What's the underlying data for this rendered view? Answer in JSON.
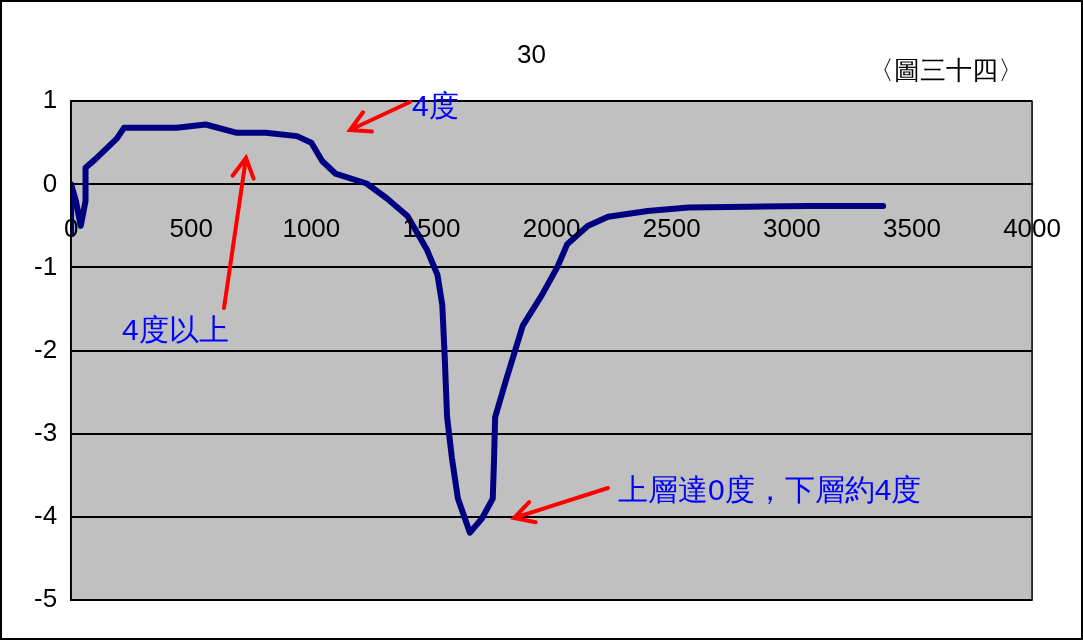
{
  "chart_data": {
    "type": "line",
    "title": "30",
    "annotations": [
      "〈圖三十四〉",
      "4度",
      "4度以上",
      "上層達0度，下層約4度"
    ],
    "x": [
      0,
      0,
      20,
      40,
      60,
      60,
      100,
      190,
      220,
      310,
      440,
      560,
      690,
      810,
      940,
      1000,
      1045,
      1100,
      1230,
      1315,
      1400,
      1480,
      1525,
      1545,
      1555,
      1565,
      1585,
      1610,
      1660,
      1710,
      1755,
      1760,
      1765,
      1815,
      1880,
      1960,
      2025,
      2065,
      2150,
      2235,
      2400,
      2570,
      2820,
      3070,
      3380
    ],
    "series": [
      {
        "color": "#000080",
        "values": [
          -0.6,
          0,
          -0.2,
          -0.5,
          -0.2,
          0.2,
          0.3,
          0.55,
          0.68,
          0.68,
          0.68,
          0.72,
          0.62,
          0.62,
          0.58,
          0.5,
          0.28,
          0.13,
          0.01,
          -0.17,
          -0.38,
          -0.78,
          -1.09,
          -1.45,
          -2.07,
          -2.8,
          -3.29,
          -3.78,
          -4.19,
          -4.02,
          -3.78,
          -3.35,
          -2.8,
          -2.31,
          -1.7,
          -1.33,
          -0.99,
          -0.72,
          -0.5,
          -0.39,
          -0.32,
          -0.28,
          -0.27,
          -0.26,
          -0.26
        ]
      }
    ],
    "xlim": [
      0,
      4000
    ],
    "xticks": [
      0,
      500,
      1000,
      1500,
      2000,
      2500,
      3000,
      3500,
      4000
    ],
    "ylim": [
      -5,
      1
    ],
    "yticks": [
      -5,
      -4,
      -3,
      -2,
      -1,
      0,
      1
    ],
    "grid": "y",
    "legend": false,
    "marker": "none",
    "line_style": "solid"
  }
}
